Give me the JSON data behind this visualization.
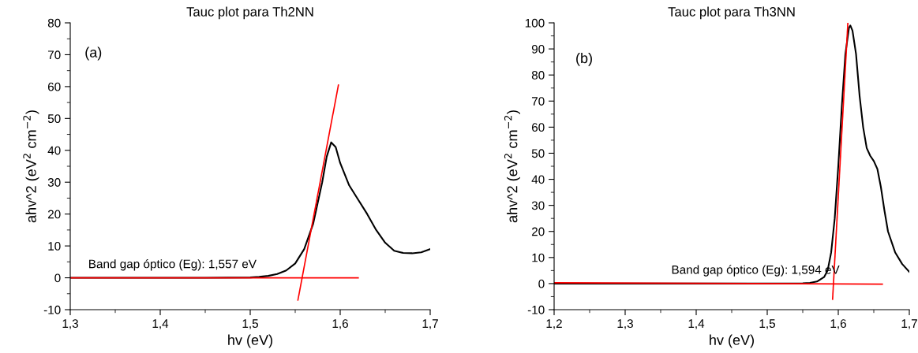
{
  "chart_data": [
    {
      "type": "line",
      "title": "Tauc plot para Th2NN",
      "xlabel": "hv (eV)",
      "ylabel": "ahv^2 (eV$^{2}$ cm$^{−2}$)",
      "annotations": [
        "(a)",
        "Band gap óptico (Eg): 1,557 eV"
      ],
      "xlim": [
        1.3,
        1.7
      ],
      "xticks": [
        {
          "value": 1.3,
          "label": "1,3"
        },
        {
          "value": 1.4,
          "label": "1,4"
        },
        {
          "value": 1.5,
          "label": "1,5"
        },
        {
          "value": 1.6,
          "label": "1,6"
        },
        {
          "value": 1.7,
          "label": "1,7"
        }
      ],
      "ylim": [
        -10,
        80
      ],
      "yticks": [
        -10,
        0,
        10,
        20,
        30,
        40,
        50,
        60,
        70,
        80
      ],
      "grid": false,
      "marker": "none",
      "line_style": "solid",
      "series": [
        {
          "color": "#000000",
          "x": [
            1.3,
            1.35,
            1.4,
            1.45,
            1.5,
            1.51,
            1.52,
            1.53,
            1.54,
            1.55,
            1.56,
            1.57,
            1.58,
            1.585,
            1.59,
            1.595,
            1.6,
            1.61,
            1.62,
            1.63,
            1.64,
            1.65,
            1.66,
            1.67,
            1.68,
            1.69,
            1.7
          ],
          "values": [
            0,
            0,
            0,
            0,
            0.1,
            0.3,
            0.6,
            1.2,
            2.3,
            4.5,
            9,
            17,
            30,
            38,
            42.5,
            41,
            36,
            29,
            24.5,
            20,
            15,
            11,
            8.5,
            7.8,
            7.7,
            8,
            9
          ]
        },
        {
          "type": "line",
          "color": "#ff0000",
          "x": [
            1.553,
            1.598
          ],
          "values": [
            -7,
            60.5
          ]
        },
        {
          "type": "line",
          "color": "#ff0000",
          "x": [
            1.3,
            1.62
          ],
          "values": [
            0,
            0
          ]
        }
      ]
    },
    {
      "type": "line",
      "title": "Tauc plot para Th3NN",
      "xlabel": "hv (eV)",
      "ylabel": "ahv^2 (eV$^{2}$ cm$^{−2}$)",
      "annotations": [
        "(b)",
        "Band gap óptico (Eg): 1,594 eV"
      ],
      "xlim": [
        1.2,
        1.7
      ],
      "xticks": [
        {
          "value": 1.2,
          "label": "1,2"
        },
        {
          "value": 1.3,
          "label": "1,3"
        },
        {
          "value": 1.4,
          "label": "1,4"
        },
        {
          "value": 1.5,
          "label": "1,5"
        },
        {
          "value": 1.6,
          "label": "1,6"
        },
        {
          "value": 1.7,
          "label": "1,7"
        }
      ],
      "ylim": [
        -10,
        100
      ],
      "yticks": [
        -10,
        0,
        10,
        20,
        30,
        40,
        50,
        60,
        70,
        80,
        90,
        100
      ],
      "grid": false,
      "marker": "none",
      "line_style": "solid",
      "series": [
        {
          "color": "#000000",
          "x": [
            1.2,
            1.3,
            1.4,
            1.5,
            1.55,
            1.56,
            1.57,
            1.58,
            1.585,
            1.59,
            1.595,
            1.6,
            1.605,
            1.61,
            1.615,
            1.617,
            1.62,
            1.625,
            1.63,
            1.635,
            1.64,
            1.645,
            1.65,
            1.655,
            1.66,
            1.665,
            1.67,
            1.68,
            1.69,
            1.7
          ],
          "values": [
            0,
            0,
            0,
            0,
            0.1,
            0.3,
            0.8,
            2.5,
            5,
            12,
            25,
            45,
            68,
            88,
            98,
            99,
            97,
            88,
            72,
            60,
            52,
            49,
            47,
            44,
            37,
            28,
            20,
            12,
            7.5,
            4.5
          ]
        },
        {
          "type": "line",
          "color": "#ff0000",
          "x": [
            1.592,
            1.6135
          ],
          "values": [
            -6,
            100
          ]
        },
        {
          "type": "line",
          "color": "#ff0000",
          "x": [
            1.2,
            1.662
          ],
          "values": [
            0.3,
            -0.2
          ]
        }
      ]
    }
  ]
}
